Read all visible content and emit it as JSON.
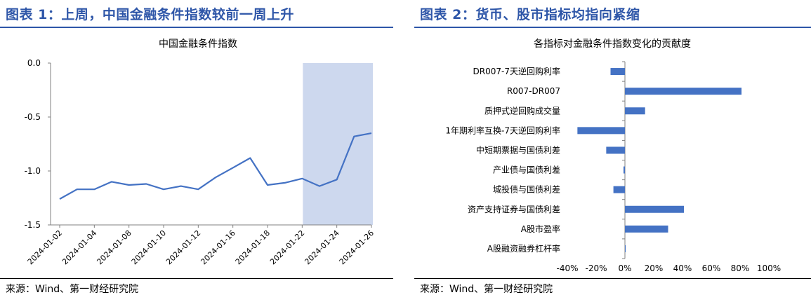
{
  "left_panel": {
    "figure_title": "图表 1：上周，中国金融条件指数较前一周上升",
    "source": "来源：Wind、第一财经研究院"
  },
  "right_panel": {
    "figure_title": "图表 2：货币、股市指标均指向紧缩",
    "source": "来源：Wind、第一财经研究院"
  },
  "colors": {
    "accent": "#2e56a8",
    "series": "#4472c4",
    "highlight": "#cdd8ee"
  },
  "chart_data": [
    {
      "type": "line",
      "title": "中国金融条件指数",
      "xlabel": "",
      "ylabel": "",
      "x": [
        "2024-01-02",
        "2024-01-03",
        "2024-01-04",
        "2024-01-05",
        "2024-01-08",
        "2024-01-09",
        "2024-01-10",
        "2024-01-11",
        "2024-01-12",
        "2024-01-15",
        "2024-01-16",
        "2024-01-17",
        "2024-01-18",
        "2024-01-19",
        "2024-01-22",
        "2024-01-23",
        "2024-01-24",
        "2024-01-25",
        "2024-01-26"
      ],
      "x_tick_labels": [
        "2024-01-02",
        "2024-01-04",
        "2024-01-08",
        "2024-01-10",
        "2024-01-12",
        "2024-01-16",
        "2024-01-18",
        "2024-01-22",
        "2024-01-24",
        "2024-01-26"
      ],
      "series": [
        {
          "values": [
            -1.26,
            -1.17,
            -1.17,
            -1.1,
            -1.13,
            -1.12,
            -1.17,
            -1.14,
            -1.17,
            -1.06,
            -0.97,
            -0.88,
            -1.13,
            -1.11,
            -1.07,
            -1.14,
            -1.08,
            -0.68,
            -0.65
          ]
        }
      ],
      "ylim": [
        -1.5,
        0.0
      ],
      "y_ticks": [
        "0.0",
        "-0.5",
        "-1.0",
        "-1.5"
      ],
      "y_tick_values": [
        0.0,
        -0.5,
        -1.0,
        -1.5
      ],
      "highlight_range": [
        "2024-01-22",
        "2024-01-26"
      ],
      "grid": false,
      "legend": "none"
    },
    {
      "type": "bar",
      "orientation": "horizontal",
      "title": "各指标对金融条件指数变化的贡献度",
      "xlabel": "",
      "ylabel": "",
      "categories": [
        "DR007-7天逆回购利率",
        "R007-DR007",
        "质押式逆回购成交量",
        "1年期利率互换-7天逆回购利率",
        "中短期票据与国债利差",
        "产业债与国债利差",
        "城投债与国债利差",
        "资产支持证券与国债利差",
        "A股市盈率",
        "A股融资融券杠杆率"
      ],
      "values": [
        -10,
        81,
        14,
        -33,
        -13,
        -1,
        -8,
        41,
        30,
        0.5
      ],
      "unit": "%",
      "xlim": [
        -40,
        100
      ],
      "x_ticks": [
        "-40%",
        "-20%",
        "0%",
        "20%",
        "40%",
        "60%",
        "80%",
        "100%"
      ],
      "x_tick_values": [
        -40,
        -20,
        0,
        20,
        40,
        60,
        80,
        100
      ],
      "grid": false,
      "legend": "none"
    }
  ]
}
